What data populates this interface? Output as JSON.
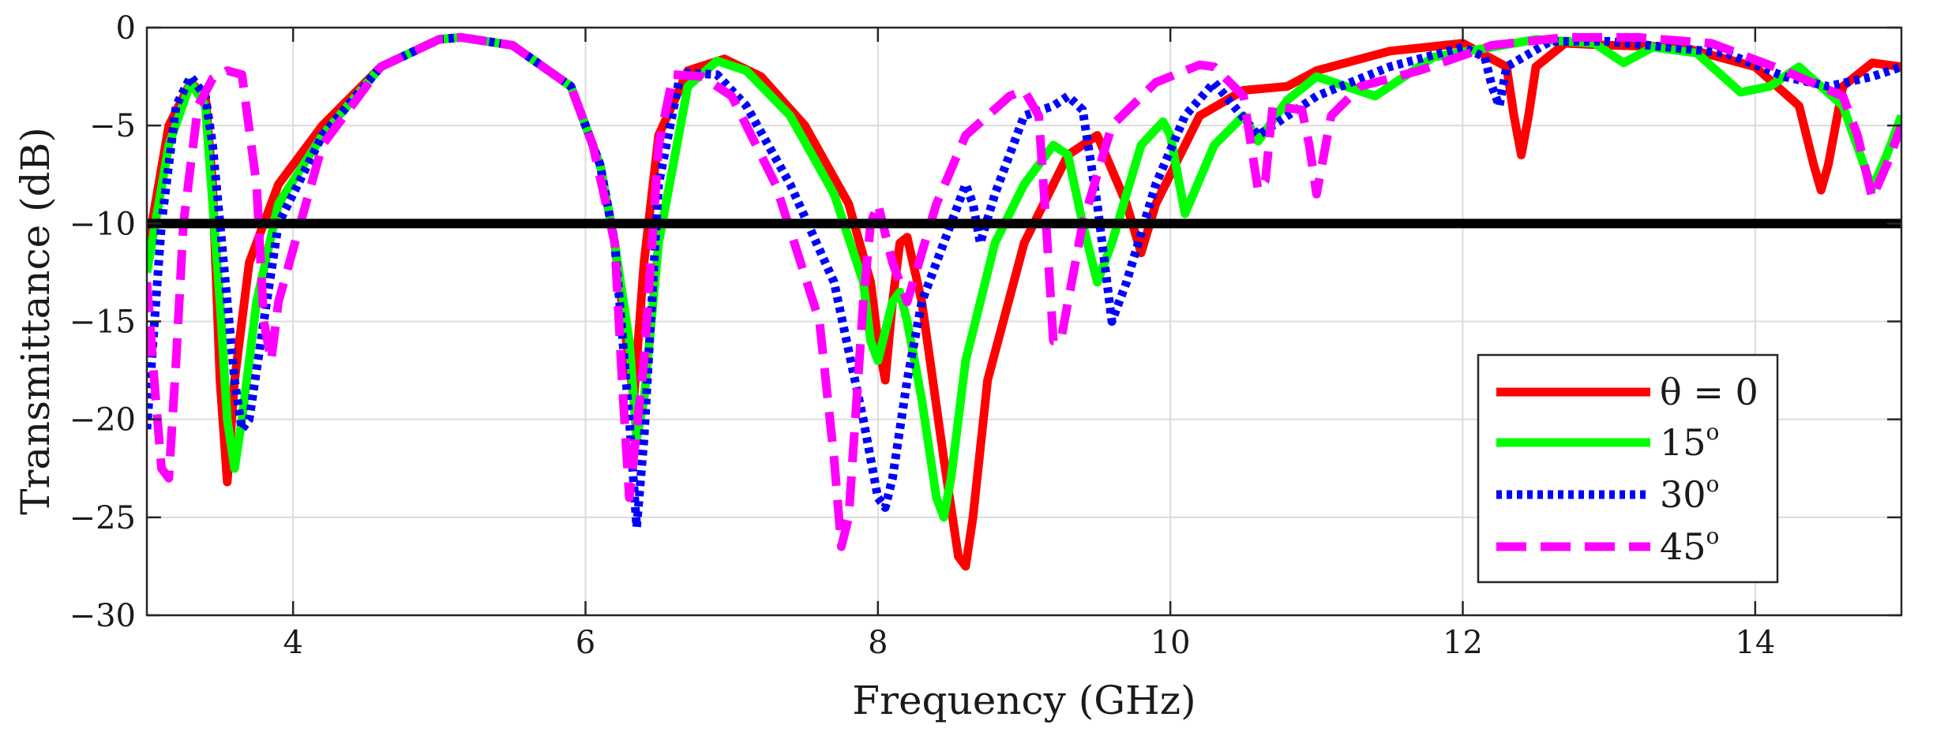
{
  "chart_data": {
    "type": "line",
    "xlabel": "Frequency (GHz)",
    "ylabel": "Transmittance (dB)",
    "xlim": [
      3,
      15
    ],
    "ylim": [
      -30,
      0
    ],
    "xticks": [
      4,
      6,
      8,
      10,
      12,
      14
    ],
    "yticks": [
      0,
      -5,
      -10,
      -15,
      -20,
      -25,
      -30
    ],
    "xtick_labels": [
      "4",
      "6",
      "8",
      "10",
      "12",
      "14"
    ],
    "ytick_labels": [
      "0",
      "−5",
      "−10",
      "−15",
      "−20",
      "−25",
      "−30"
    ],
    "grid": true,
    "legend_position": "bottom-right",
    "reference_line": {
      "y": -10,
      "color": "#000000"
    },
    "series": [
      {
        "name": "theta-0",
        "legend_main": "θ = 0",
        "legend_sup": "",
        "color": "#ff0000",
        "style": "solid",
        "x": [
          3.0,
          3.15,
          3.3,
          3.4,
          3.45,
          3.5,
          3.55,
          3.6,
          3.7,
          3.9,
          4.2,
          4.6,
          5.0,
          5.15,
          5.5,
          5.9,
          6.1,
          6.2,
          6.28,
          6.33,
          6.4,
          6.5,
          6.7,
          6.95,
          7.2,
          7.5,
          7.8,
          7.95,
          8.0,
          8.05,
          8.1,
          8.15,
          8.2,
          8.3,
          8.45,
          8.55,
          8.6,
          8.65,
          8.75,
          9.0,
          9.3,
          9.5,
          9.7,
          9.8,
          9.9,
          10.2,
          10.5,
          10.8,
          11.0,
          11.5,
          12.0,
          12.3,
          12.35,
          12.4,
          12.45,
          12.5,
          12.7,
          13.0,
          13.5,
          14.0,
          14.3,
          14.4,
          14.45,
          14.5,
          14.6,
          14.8,
          15.0
        ],
        "y": [
          -11.5,
          -5,
          -2.8,
          -3.5,
          -8,
          -18,
          -23.2,
          -18,
          -12,
          -8,
          -5,
          -2,
          -0.6,
          -0.5,
          -0.9,
          -3,
          -7,
          -11,
          -16,
          -19,
          -12,
          -5.5,
          -2.2,
          -1.6,
          -2.5,
          -5,
          -9,
          -13,
          -16,
          -18,
          -14,
          -11,
          -10.7,
          -14,
          -22,
          -27,
          -27.5,
          -25,
          -18,
          -11,
          -6.5,
          -5.5,
          -9,
          -11.5,
          -9,
          -4.5,
          -3.2,
          -3,
          -2.2,
          -1.2,
          -0.8,
          -2,
          -4.5,
          -6.5,
          -4.5,
          -2,
          -0.8,
          -0.9,
          -1,
          -2,
          -4,
          -7,
          -8.3,
          -7,
          -3,
          -1.8,
          -2
        ]
      },
      {
        "name": "theta-15",
        "legend_main": "15",
        "legend_sup": "o",
        "color": "#00ff00",
        "style": "solid",
        "x": [
          3.0,
          3.15,
          3.3,
          3.4,
          3.5,
          3.55,
          3.6,
          3.65,
          3.75,
          3.9,
          4.2,
          4.6,
          5.0,
          5.15,
          5.5,
          5.9,
          6.1,
          6.2,
          6.3,
          6.35,
          6.4,
          6.5,
          6.7,
          6.9,
          7.1,
          7.4,
          7.7,
          7.9,
          7.95,
          8.0,
          8.1,
          8.15,
          8.2,
          8.3,
          8.4,
          8.45,
          8.5,
          8.6,
          8.8,
          9.0,
          9.2,
          9.3,
          9.4,
          9.5,
          9.6,
          9.8,
          9.95,
          10.0,
          10.05,
          10.1,
          10.3,
          10.5,
          10.6,
          10.8,
          11.0,
          11.4,
          11.8,
          12.2,
          12.5,
          12.9,
          13.1,
          13.3,
          13.6,
          13.9,
          14.1,
          14.3,
          14.6,
          14.8,
          14.9,
          15.0
        ],
        "y": [
          -12.5,
          -6,
          -2.8,
          -4,
          -14,
          -20,
          -22.5,
          -20,
          -14,
          -9,
          -5.5,
          -2,
          -0.6,
          -0.5,
          -0.9,
          -3,
          -7,
          -11,
          -16,
          -21,
          -19,
          -11,
          -3,
          -1.7,
          -2.2,
          -4.5,
          -8.5,
          -13,
          -16,
          -17,
          -14,
          -13.5,
          -15,
          -19,
          -24,
          -25,
          -23,
          -17,
          -11,
          -8,
          -6,
          -6.5,
          -10,
          -13,
          -11,
          -6,
          -4.8,
          -5.5,
          -7.5,
          -9.5,
          -6,
          -4.5,
          -5.8,
          -3.7,
          -2.5,
          -3.5,
          -1.5,
          -1,
          -0.6,
          -0.8,
          -1.8,
          -1,
          -1.3,
          -3.3,
          -3,
          -2,
          -4,
          -8.2,
          -6.5,
          -4.5
        ]
      },
      {
        "name": "theta-30",
        "legend_main": "30",
        "legend_sup": "o",
        "color": "#0000ff",
        "style": "dotted",
        "x": [
          3.0,
          3.1,
          3.2,
          3.3,
          3.4,
          3.45,
          3.5,
          3.55,
          3.6,
          3.65,
          3.7,
          3.8,
          3.9,
          4.2,
          4.6,
          5.0,
          5.15,
          5.5,
          5.9,
          6.1,
          6.2,
          6.3,
          6.35,
          6.4,
          6.5,
          6.65,
          6.9,
          7.1,
          7.4,
          7.7,
          7.9,
          8.0,
          8.05,
          8.1,
          8.2,
          8.3,
          8.4,
          8.6,
          8.65,
          8.7,
          8.8,
          9.0,
          9.2,
          9.3,
          9.4,
          9.5,
          9.6,
          9.7,
          9.9,
          10.1,
          10.3,
          10.6,
          11.0,
          11.5,
          12.0,
          12.15,
          12.2,
          12.25,
          12.3,
          12.6,
          13.0,
          13.4,
          13.8,
          14.2,
          14.5,
          14.8,
          15.0
        ],
        "y": [
          -20.5,
          -10,
          -4,
          -2.5,
          -3.5,
          -6,
          -10,
          -14,
          -18,
          -20.5,
          -20,
          -15,
          -10,
          -5.5,
          -2,
          -0.6,
          -0.5,
          -0.9,
          -3,
          -7,
          -11,
          -20,
          -25.5,
          -21,
          -8,
          -2.3,
          -2.4,
          -4,
          -8,
          -13,
          -20,
          -24,
          -24.5,
          -23,
          -18,
          -14,
          -12,
          -8,
          -9,
          -11,
          -8.5,
          -4.5,
          -4,
          -3.5,
          -4.2,
          -9,
          -15,
          -13,
          -8,
          -4.5,
          -2.8,
          -5.5,
          -3.5,
          -2,
          -1,
          -1.5,
          -3,
          -4,
          -2,
          -0.7,
          -0.7,
          -1,
          -1.3,
          -2.5,
          -3,
          -2.5,
          -2
        ]
      },
      {
        "name": "theta-45",
        "legend_main": "45",
        "legend_sup": "o",
        "color": "#ff00ff",
        "style": "dashed",
        "x": [
          3.0,
          3.05,
          3.1,
          3.15,
          3.2,
          3.25,
          3.35,
          3.45,
          3.55,
          3.65,
          3.75,
          3.8,
          3.85,
          3.9,
          4.2,
          4.6,
          5.0,
          5.15,
          5.5,
          5.9,
          6.05,
          6.2,
          6.25,
          6.3,
          6.4,
          6.5,
          6.6,
          6.8,
          7.0,
          7.3,
          7.6,
          7.7,
          7.75,
          7.8,
          7.9,
          7.95,
          8.0,
          8.1,
          8.2,
          8.4,
          8.6,
          8.9,
          9.0,
          9.1,
          9.15,
          9.2,
          9.25,
          9.4,
          9.6,
          9.9,
          10.2,
          10.3,
          10.5,
          10.6,
          10.65,
          10.7,
          10.9,
          10.95,
          11.0,
          11.1,
          11.3,
          11.7,
          12.2,
          12.7,
          13.2,
          13.7,
          14.2,
          14.6,
          14.7,
          14.8,
          14.9,
          15.0
        ],
        "y": [
          -13,
          -18,
          -22.5,
          -23,
          -17,
          -10,
          -4,
          -2.6,
          -2.2,
          -2.4,
          -8,
          -15,
          -17,
          -14,
          -6,
          -2,
          -0.6,
          -0.5,
          -0.9,
          -3,
          -6,
          -11,
          -18,
          -24,
          -17,
          -6,
          -2.4,
          -2.5,
          -3.5,
          -8,
          -15,
          -22,
          -26.5,
          -25,
          -14,
          -10,
          -9,
          -12,
          -14,
          -9,
          -5.5,
          -3.5,
          -3.2,
          -4.5,
          -10,
          -16,
          -16,
          -10,
          -5,
          -2.8,
          -1.9,
          -2,
          -3.5,
          -8.3,
          -7.8,
          -4,
          -4.2,
          -6,
          -8.5,
          -4.5,
          -3,
          -2.2,
          -0.9,
          -0.5,
          -0.5,
          -0.8,
          -2.2,
          -3.5,
          -5.5,
          -8.7,
          -7,
          -5
        ]
      }
    ]
  }
}
